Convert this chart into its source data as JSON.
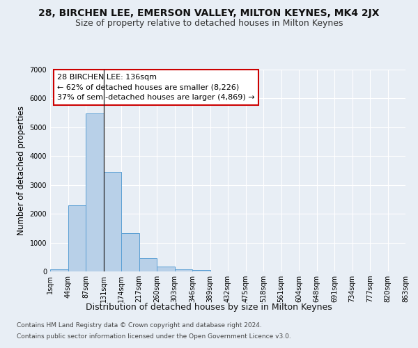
{
  "title1": "28, BIRCHEN LEE, EMERSON VALLEY, MILTON KEYNES, MK4 2JX",
  "title2": "Size of property relative to detached houses in Milton Keynes",
  "xlabel": "Distribution of detached houses by size in Milton Keynes",
  "ylabel": "Number of detached properties",
  "footnote1": "Contains HM Land Registry data © Crown copyright and database right 2024.",
  "footnote2": "Contains public sector information licensed under the Open Government Licence v3.0.",
  "bar_values": [
    75,
    2300,
    5480,
    3450,
    1320,
    460,
    160,
    80,
    50,
    0,
    0,
    0,
    0,
    0,
    0,
    0,
    0,
    0,
    0,
    0
  ],
  "bar_color": "#b8d0e8",
  "bar_edge_color": "#5a9fd4",
  "marker_bar_index": 3,
  "marker_color": "#222222",
  "annotation_line1": "28 BIRCHEN LEE: 136sqm",
  "annotation_line2": "← 62% of detached houses are smaller (8,226)",
  "annotation_line3": "37% of semi-detached houses are larger (4,869) →",
  "annotation_box_color": "#ffffff",
  "annotation_border_color": "#cc0000",
  "ylim": [
    0,
    7000
  ],
  "yticks": [
    0,
    1000,
    2000,
    3000,
    4000,
    5000,
    6000,
    7000
  ],
  "xlabels": [
    "1sqm",
    "44sqm",
    "87sqm",
    "131sqm",
    "174sqm",
    "217sqm",
    "260sqm",
    "303sqm",
    "346sqm",
    "389sqm",
    "432sqm",
    "475sqm",
    "518sqm",
    "561sqm",
    "604sqm",
    "648sqm",
    "691sqm",
    "734sqm",
    "777sqm",
    "820sqm",
    "863sqm"
  ],
  "bg_color": "#e8eef5",
  "plot_bg_color": "#e8eef5",
  "grid_color": "#ffffff",
  "title1_fontsize": 10,
  "title2_fontsize": 9,
  "xlabel_fontsize": 9,
  "ylabel_fontsize": 8.5,
  "tick_fontsize": 7,
  "annotation_fontsize": 8,
  "footnote_fontsize": 6.5
}
